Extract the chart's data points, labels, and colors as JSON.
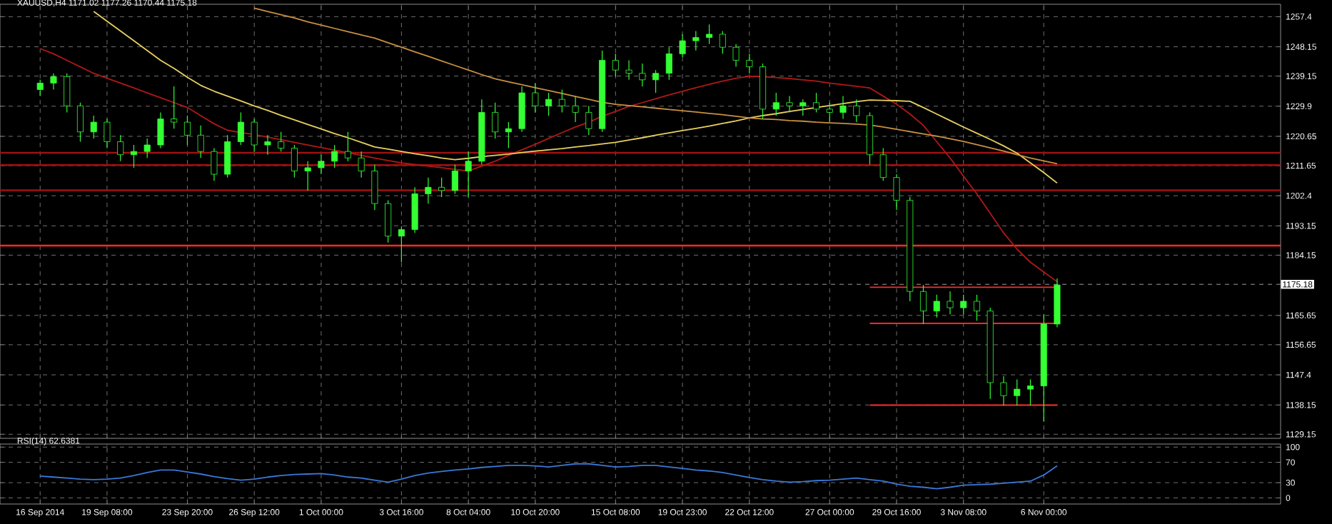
{
  "chart_data": [
    {
      "type": "candlestick",
      "title": "XAUUSD,H4 1171.02 1177.26 1170.44 1175.18",
      "color": "#33ff33",
      "categories": [
        null,
        null,
        null,
        null,
        null,
        null,
        null,
        null,
        null,
        null,
        null,
        null,
        null,
        null,
        null,
        null,
        null,
        null,
        null,
        null,
        null,
        null,
        null,
        null,
        null,
        null,
        null,
        null,
        null,
        null,
        null,
        null,
        null,
        null,
        null,
        null,
        null,
        null,
        null,
        null,
        null,
        null,
        null,
        null,
        null,
        null,
        null,
        null,
        null,
        null,
        null,
        null,
        null,
        null,
        null,
        null,
        null,
        null,
        null,
        null,
        null,
        null,
        null,
        null,
        null,
        null,
        null,
        null,
        null,
        null,
        null,
        null,
        null,
        null,
        null,
        null,
        null
      ],
      "ohlc": [
        [
          1235,
          1238,
          1233,
          1237
        ],
        [
          1237,
          1240,
          1235,
          1239
        ],
        [
          1239,
          1240,
          1228,
          1230
        ],
        [
          1230,
          1231,
          1219,
          1222
        ],
        [
          1222,
          1227,
          1220,
          1225
        ],
        [
          1225,
          1226,
          1217,
          1219
        ],
        [
          1219,
          1221,
          1213,
          1215
        ],
        [
          1215,
          1218,
          1211,
          1216
        ],
        [
          1216,
          1220,
          1214,
          1218
        ],
        [
          1218,
          1228,
          1217,
          1226
        ],
        [
          1226,
          1236,
          1223,
          1225
        ],
        [
          1225,
          1227,
          1218,
          1221
        ],
        [
          1221,
          1224,
          1214,
          1216
        ],
        [
          1216,
          1217,
          1207,
          1209
        ],
        [
          1209,
          1221,
          1208,
          1219
        ],
        [
          1219,
          1228,
          1218,
          1225
        ],
        [
          1225,
          1226,
          1216,
          1218
        ],
        [
          1218,
          1221,
          1215,
          1219
        ],
        [
          1219,
          1222,
          1216,
          1217
        ],
        [
          1217,
          1218,
          1208,
          1210
        ],
        [
          1210,
          1213,
          1204,
          1211
        ],
        [
          1211,
          1215,
          1209,
          1213
        ],
        [
          1213,
          1218,
          1211,
          1216
        ],
        [
          1216,
          1222,
          1213,
          1214
        ],
        [
          1214,
          1216,
          1208,
          1210
        ],
        [
          1210,
          1212,
          1198,
          1200
        ],
        [
          1200,
          1201,
          1188,
          1190
        ],
        [
          1190,
          1193,
          1182,
          1192
        ],
        [
          1192,
          1205,
          1191,
          1203
        ],
        [
          1203,
          1208,
          1200,
          1205
        ],
        [
          1205,
          1208,
          1202,
          1204
        ],
        [
          1204,
          1212,
          1203,
          1210
        ],
        [
          1210,
          1216,
          1202,
          1213
        ],
        [
          1213,
          1232,
          1212,
          1228
        ],
        [
          1228,
          1231,
          1220,
          1222
        ],
        [
          1222,
          1225,
          1217,
          1223
        ],
        [
          1223,
          1236,
          1222,
          1234
        ],
        [
          1234,
          1237,
          1228,
          1230
        ],
        [
          1230,
          1234,
          1227,
          1232
        ],
        [
          1232,
          1235,
          1228,
          1230
        ],
        [
          1230,
          1233,
          1225,
          1228
        ],
        [
          1228,
          1230,
          1221,
          1223
        ],
        [
          1223,
          1247,
          1222,
          1244
        ],
        [
          1244,
          1246,
          1239,
          1241
        ],
        [
          1241,
          1244,
          1238,
          1240
        ],
        [
          1240,
          1243,
          1236,
          1238
        ],
        [
          1238,
          1241,
          1234,
          1240
        ],
        [
          1240,
          1248,
          1238,
          1246
        ],
        [
          1246,
          1252,
          1245,
          1250
        ],
        [
          1250,
          1253,
          1247,
          1251
        ],
        [
          1251,
          1255,
          1249,
          1252
        ],
        [
          1252,
          1253,
          1246,
          1248
        ],
        [
          1248,
          1249,
          1242,
          1244
        ],
        [
          1244,
          1246,
          1240,
          1242
        ],
        [
          1242,
          1243,
          1226,
          1229
        ],
        [
          1229,
          1234,
          1227,
          1231
        ],
        [
          1231,
          1233,
          1228,
          1230
        ],
        [
          1230,
          1232,
          1227,
          1231
        ],
        [
          1231,
          1234,
          1228,
          1229
        ],
        [
          1229,
          1231,
          1225,
          1228
        ],
        [
          1228,
          1233,
          1226,
          1230
        ],
        [
          1230,
          1232,
          1225,
          1227
        ],
        [
          1227,
          1228,
          1212,
          1215
        ],
        [
          1215,
          1217,
          1207,
          1208
        ],
        [
          1208,
          1209,
          1198,
          1201
        ],
        [
          1201,
          1202,
          1170,
          1173
        ],
        [
          1173,
          1175,
          1163,
          1167
        ],
        [
          1167,
          1172,
          1165,
          1170
        ],
        [
          1170,
          1173,
          1166,
          1168
        ],
        [
          1168,
          1172,
          1166,
          1170
        ],
        [
          1170,
          1172,
          1164,
          1167
        ],
        [
          1167,
          1168,
          1140,
          1145
        ],
        [
          1145,
          1147,
          1138,
          1141
        ],
        [
          1141,
          1146,
          1138,
          1143
        ],
        [
          1143,
          1146,
          1138,
          1144
        ],
        [
          1144,
          1166,
          1133,
          1163
        ],
        [
          1163,
          1177,
          1162,
          1175
        ]
      ],
      "series": [
        {
          "type": "line",
          "color": "#b01818",
          "values": [
            1247.6,
            1246,
            1244,
            1242,
            1240,
            1238.5,
            1237,
            1235.5,
            1234,
            1232.5,
            1231,
            1229.5,
            1227,
            1224.5,
            1222.5,
            1221.8,
            1221.2,
            1220.4,
            1219.6,
            1218.8,
            1218,
            1217.2,
            1216.4,
            1215.6,
            1214.8,
            1214,
            1213.2,
            1212.5,
            1212,
            1211.5,
            1211,
            1210.5,
            1210,
            1211.5,
            1213,
            1214.8,
            1216.5,
            1218.2,
            1220,
            1221.8,
            1223.5,
            1225,
            1226.8,
            1228.3,
            1229.8,
            1231,
            1232.2,
            1233.4,
            1234.5,
            1235.6,
            1236.6,
            1237.6,
            1238.5,
            1239.1,
            1239,
            1238.7,
            1238.4,
            1238,
            1237.6,
            1237,
            1236.5,
            1236,
            1235.5,
            1233,
            1230.5,
            1227.5,
            1224,
            1219,
            1214,
            1208.4,
            1203,
            1197,
            1191,
            1186,
            1182,
            1179,
            1176
          ]
        },
        {
          "type": "line",
          "color": "#e8d060",
          "values": [
            null,
            null,
            null,
            null,
            1259,
            1256,
            1253,
            1250,
            1247,
            1244,
            1241.5,
            1238.8,
            1236.3,
            1234.5,
            1233,
            1231.5,
            1230,
            1228.6,
            1227.1,
            1225.7,
            1224.3,
            1222.9,
            1221.5,
            1220.2,
            1218.8,
            1217.4,
            1216.7,
            1216,
            1215.3,
            1214.7,
            1214,
            1213.5,
            1213.9,
            1214.4,
            1214.8,
            1215.2,
            1215.7,
            1216.1,
            1216.5,
            1216.9,
            1217.4,
            1217.8,
            1218.3,
            1218.8,
            1219.5,
            1220.2,
            1221,
            1221.7,
            1222.4,
            1223.1,
            1223.8,
            1224.6,
            1225.4,
            1226.3,
            1227,
            1227.6,
            1228.3,
            1228.9,
            1229.5,
            1230.1,
            1230.7,
            1231.3,
            1231.8,
            1231.7,
            1231.6,
            1231.4,
            1229.5,
            1227.5,
            1225.5,
            1223.5,
            1221.6,
            1219.7,
            1217.7,
            1215.5,
            1212.5,
            1209.5,
            1206.3
          ]
        },
        {
          "type": "line",
          "color": "#c89040",
          "values": [
            null,
            null,
            null,
            null,
            null,
            null,
            null,
            null,
            null,
            null,
            null,
            null,
            null,
            null,
            null,
            null,
            1260,
            1259,
            1258,
            1257,
            1255.8,
            1254.8,
            1253.8,
            1252.8,
            1251.8,
            1250.8,
            1249.4,
            1248,
            1246.6,
            1245.2,
            1243.8,
            1242.4,
            1241,
            1239.6,
            1238.3,
            1237.4,
            1236.5,
            1235.6,
            1234.7,
            1233.8,
            1232.9,
            1232,
            1231.1,
            1230.5,
            1230.1,
            1229.7,
            1229.3,
            1228.9,
            1228.5,
            1228.1,
            1227.7,
            1227.3,
            1226.8,
            1226.3,
            1226,
            1225.8,
            1225.5,
            1225.3,
            1225,
            1224.8,
            1224.6,
            1224.4,
            1224.1,
            1223.5,
            1222.8,
            1222.1,
            1221.4,
            1220.7,
            1219.9,
            1219.1,
            1218.1,
            1217.1,
            1216.1,
            1215,
            1214,
            1213.1,
            1212.2
          ]
        },
        {
          "type": "line",
          "color": "#ff2a2a",
          "values": [
            null,
            null,
            null,
            null,
            null,
            null,
            null,
            null,
            null,
            null,
            null,
            null,
            null,
            null,
            null,
            null,
            null,
            null,
            null,
            null,
            null,
            null,
            null,
            null,
            null,
            null,
            null,
            null,
            null,
            null,
            null,
            null,
            null,
            null,
            null,
            null,
            null,
            null,
            null,
            null,
            null,
            null,
            null,
            null,
            null,
            null,
            null,
            null,
            null,
            null,
            null,
            null,
            null,
            null,
            null,
            null,
            null,
            null,
            null,
            null,
            null,
            null,
            1174.3,
            1174.3,
            1174.3,
            1174.3,
            1174.3,
            1174.3,
            1174.3,
            1174.3,
            1174.3,
            1174.3,
            1174.3,
            1174.3,
            1174.3,
            1174.3,
            1174.3
          ]
        },
        {
          "type": "line",
          "color": "#ff2a2a",
          "values": [
            null,
            null,
            null,
            null,
            null,
            null,
            null,
            null,
            null,
            null,
            null,
            null,
            null,
            null,
            null,
            null,
            null,
            null,
            null,
            null,
            null,
            null,
            null,
            null,
            null,
            null,
            null,
            null,
            null,
            null,
            null,
            null,
            null,
            null,
            null,
            null,
            null,
            null,
            null,
            null,
            null,
            null,
            null,
            null,
            null,
            null,
            null,
            null,
            null,
            null,
            null,
            null,
            null,
            null,
            null,
            null,
            null,
            null,
            null,
            null,
            null,
            null,
            1163.2,
            1163.2,
            1163.2,
            1163.2,
            1163.2,
            1163.2,
            1163.2,
            1163.2,
            1163.2,
            1163.2,
            1163.2,
            1163.2,
            1163.2,
            1163.2,
            1163.2
          ]
        },
        {
          "type": "line",
          "color": "#ff2a2a",
          "values": [
            null,
            null,
            null,
            null,
            null,
            null,
            null,
            null,
            null,
            null,
            null,
            null,
            null,
            null,
            null,
            null,
            null,
            null,
            null,
            null,
            null,
            null,
            null,
            null,
            null,
            null,
            null,
            null,
            null,
            null,
            null,
            null,
            null,
            null,
            null,
            null,
            null,
            null,
            null,
            null,
            null,
            null,
            null,
            null,
            null,
            null,
            null,
            null,
            null,
            null,
            null,
            null,
            null,
            null,
            null,
            null,
            null,
            null,
            null,
            null,
            null,
            null,
            1138.1,
            1138.1,
            1138.1,
            1138.1,
            1138.1,
            1138.1,
            1138.1,
            1138.1,
            1138.1,
            1138.1,
            1138.1,
            1138.1,
            1138.1,
            1138.1,
            1138.1
          ]
        }
      ],
      "ref_lines": [
        {
          "axis": "y",
          "value": 1187.1,
          "label": null,
          "color": "#ff2a2a"
        },
        {
          "axis": "y",
          "value": 1215.6,
          "label": null,
          "color": "#a01010"
        },
        {
          "axis": "y",
          "value": 1211.8,
          "label": null,
          "color": "#a01010"
        },
        {
          "axis": "y",
          "value": 1204.1,
          "label": null,
          "color": "#a01010"
        },
        {
          "axis": "y",
          "value": 1175.18,
          "label": "1175.18",
          "color": "#9a9a9a",
          "line_style": "dashed"
        }
      ],
      "ylim": [
        1127.9,
        1261.2
      ],
      "yticks": [
        1129.15,
        1138.15,
        1147.4,
        1156.65,
        1165.65,
        1184.15,
        1193.15,
        1202.4,
        1211.65,
        1220.65,
        1229.9,
        1239.15,
        1248.15,
        1257.4
      ],
      "grid": true
    },
    {
      "type": "line",
      "title": "RSI(14) 62.6381",
      "categories": [
        "16 Sep 2014",
        null,
        null,
        null,
        null,
        "19 Sep 08:00",
        null,
        null,
        null,
        null,
        null,
        "23 Sep 20:00",
        null,
        null,
        null,
        null,
        "26 Sep 12:00",
        null,
        null,
        null,
        null,
        "1 Oct 00:00",
        null,
        null,
        null,
        null,
        null,
        "3 Oct 16:00",
        null,
        null,
        null,
        null,
        "8 Oct 04:00",
        null,
        null,
        null,
        null,
        "10 Oct 20:00",
        null,
        null,
        null,
        null,
        null,
        "15 Oct 08:00",
        null,
        null,
        null,
        null,
        "19 Oct 23:00",
        null,
        null,
        null,
        null,
        "22 Oct 12:00",
        null,
        null,
        null,
        null,
        null,
        "27 Oct 00:00",
        null,
        null,
        null,
        null,
        "29 Oct 16:00",
        null,
        null,
        null,
        null,
        "3 Nov 08:00",
        null,
        null,
        null,
        null,
        null,
        "6 Nov 00:00",
        null
      ],
      "series": [
        {
          "color": "#3a78d8",
          "values": [
            43,
            41,
            39,
            37,
            36,
            37,
            39,
            44,
            50,
            55,
            55,
            51,
            47,
            42,
            38,
            35,
            37,
            41,
            44,
            46,
            47,
            48,
            45,
            41,
            39,
            35,
            31,
            37,
            44,
            49,
            52,
            55,
            57,
            60,
            62,
            64,
            64,
            63,
            61,
            64,
            67,
            67,
            64,
            61,
            62,
            64,
            64,
            61,
            58,
            55,
            53,
            50,
            45,
            40,
            36,
            33,
            31,
            32,
            34,
            35,
            37,
            39,
            36,
            33,
            27,
            23,
            21,
            18,
            21,
            25,
            26,
            27,
            29,
            31,
            33,
            45,
            63
          ]
        }
      ],
      "ylim": [
        -12,
        106
      ],
      "yticks": [
        0,
        30,
        70,
        100
      ],
      "grid": true
    }
  ]
}
